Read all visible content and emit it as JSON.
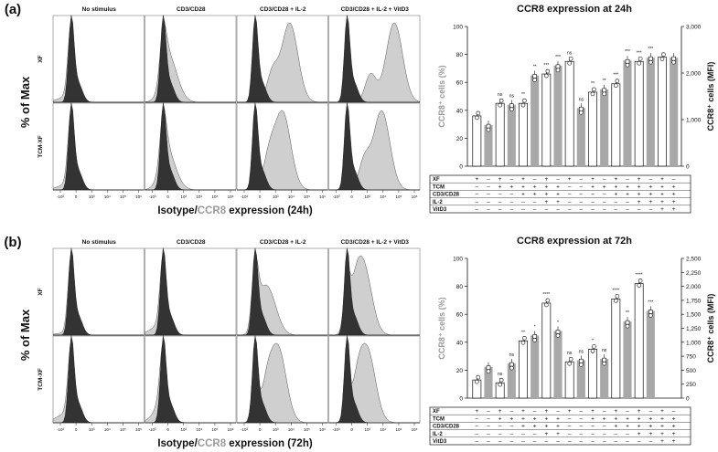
{
  "chart_data": [
    {
      "type": "histogram",
      "panel": "(a)",
      "conditions": [
        "No stimulus",
        "CD3/CD28",
        "CD3/CD28 + IL-2",
        "CD3/CD28 + IL-2 + VitD3"
      ],
      "rows": [
        "XF",
        "TCM-XF"
      ],
      "ylabel": "% of Max",
      "xlabel_parts": [
        "Isotype/",
        "CCR8",
        " expression (24h)"
      ],
      "x_ticks": [
        "-10³",
        "0",
        "10³",
        "10⁴",
        "10⁵",
        "10⁶"
      ],
      "peak_position": [
        [
          0.12,
          0.28,
          0.58,
          0.72
        ],
        [
          0.12,
          0.26,
          0.5,
          0.58
        ]
      ],
      "stained_fraction": [
        [
          0.05,
          0.45,
          0.8,
          0.9
        ],
        [
          0.05,
          0.4,
          0.72,
          0.78
        ]
      ]
    },
    {
      "type": "histogram",
      "panel": "(b)",
      "conditions": [
        "No stimulus",
        "CD3/CD28",
        "CD3/CD28 + IL-2",
        "CD3/CD28 + IL-2 + VitD3"
      ],
      "rows": [
        "XF",
        "TCM-XF"
      ],
      "ylabel": "% of Max",
      "xlabel_parts": [
        "Isotype/",
        "CCR8",
        " expression (72h)"
      ],
      "x_ticks": [
        "-10³",
        "0",
        "10³",
        "10⁴",
        "10⁵",
        "10⁶"
      ],
      "peak_position": [
        [
          0.1,
          0.12,
          0.35,
          0.38
        ],
        [
          0.1,
          0.18,
          0.45,
          0.42
        ]
      ],
      "stained_fraction": [
        [
          0.02,
          0.08,
          0.4,
          0.6
        ],
        [
          0.08,
          0.2,
          0.6,
          0.7
        ]
      ]
    },
    {
      "type": "bar",
      "panel": "(a)",
      "title": "CCR8 expression at 24h",
      "ylabel_left": "CCR8⁺ cells (%)",
      "ylabel_right": "CCR8⁺ cells (MFI)",
      "ylim_left": [
        0,
        100
      ],
      "ylim_right": [
        0,
        3000
      ],
      "yticks_left": [
        "0",
        "20",
        "40",
        "60",
        "80",
        "100"
      ],
      "yticks_right": [
        "0",
        "1,000",
        "2,000",
        "3,000"
      ],
      "groups": 9,
      "series": [
        {
          "name": "CCR8⁺ cells (%)",
          "axis": "left",
          "values": [
            36,
            45,
            45,
            66,
            75,
            53,
            59,
            75,
            78
          ],
          "significance": [
            "",
            "ns",
            "**",
            "***",
            "ns",
            "**",
            "***",
            "***",
            ""
          ]
        },
        {
          "name": "CCR8⁺ cells (MFI)",
          "axis": "right",
          "values": [
            880,
            1320,
            1950,
            2160,
            1250,
            1650,
            2270,
            2330,
            2330
          ],
          "significance": [
            "",
            "ns",
            "**",
            "***",
            "ns",
            "**",
            "***",
            "***",
            ""
          ]
        }
      ],
      "table": {
        "row_labels": [
          "XF",
          "TCM",
          "CD3/CD28",
          "IL-2",
          "VitD3"
        ],
        "cells": [
          [
            "+",
            "–",
            "+",
            "–",
            "+",
            "–",
            "+",
            "–",
            "+",
            "–",
            "+",
            "–",
            "+",
            "–",
            "+",
            "–",
            "+",
            "–"
          ],
          [
            "–",
            "–",
            "+",
            "+",
            "+",
            "+",
            "+",
            "+",
            "–",
            "–",
            "+",
            "+",
            "+",
            "+",
            "+",
            "+",
            "+",
            "+"
          ],
          [
            "–",
            "–",
            "–",
            "–",
            "+",
            "+",
            "+",
            "+",
            "–",
            "–",
            "–",
            "–",
            "+",
            "+",
            "+",
            "+",
            "+",
            "+"
          ],
          [
            "–",
            "–",
            "–",
            "–",
            "–",
            "–",
            "+",
            "+",
            "–",
            "–",
            "–",
            "–",
            "–",
            "–",
            "+",
            "+",
            "+",
            "+"
          ],
          [
            "–",
            "–",
            "–",
            "–",
            "–",
            "–",
            "–",
            "–",
            "–",
            "–",
            "–",
            "–",
            "–",
            "–",
            "–",
            "–",
            "+",
            "+"
          ]
        ]
      }
    },
    {
      "type": "bar",
      "panel": "(b)",
      "title": "CCR8 expression at 72h",
      "ylabel_left": "CCR8⁺ cells (%)",
      "ylabel_right": "CCR8⁺ cells (MFI)",
      "ylim_left": [
        0,
        100
      ],
      "ylim_right": [
        0,
        2500
      ],
      "yticks_left": [
        "0",
        "20",
        "40",
        "60",
        "80",
        "100"
      ],
      "yticks_right": [
        "0",
        "250",
        "500",
        "750",
        "1,000",
        "1,250",
        "1,500",
        "1,750",
        "2,000",
        "2,250",
        "2,500"
      ],
      "groups": 9,
      "series": [
        {
          "name": "CCR8⁺ cells (%)",
          "axis": "left",
          "values": [
            13,
            11,
            41,
            68,
            26,
            35,
            71,
            82,
            0
          ],
          "significance": [
            "",
            "ns",
            "**",
            "****",
            "ns",
            "*",
            "****",
            "****",
            ""
          ]
        },
        {
          "name": "CCR8⁺ cells (MFI)",
          "axis": "right",
          "values": [
            560,
            620,
            1120,
            1200,
            680,
            700,
            1370,
            1560,
            0
          ],
          "significance": [
            "",
            "ns",
            "*",
            "*",
            "ns",
            "ns",
            "**",
            "***",
            ""
          ]
        }
      ],
      "table": {
        "row_labels": [
          "XF",
          "TCM",
          "CD3/CD28",
          "IL-2",
          "VitD3"
        ],
        "cells": [
          [
            "+",
            "–",
            "+",
            "–",
            "+",
            "–",
            "+",
            "–",
            "+",
            "–",
            "+",
            "–",
            "+",
            "–",
            "+",
            "–",
            "+",
            "–"
          ],
          [
            "–",
            "–",
            "+",
            "+",
            "+",
            "+",
            "+",
            "+",
            "–",
            "–",
            "+",
            "+",
            "+",
            "+",
            "+",
            "+",
            "+",
            "+"
          ],
          [
            "–",
            "–",
            "–",
            "–",
            "+",
            "+",
            "+",
            "+",
            "–",
            "–",
            "–",
            "–",
            "+",
            "+",
            "+",
            "+",
            "+",
            "+"
          ],
          [
            "–",
            "–",
            "–",
            "–",
            "–",
            "–",
            "+",
            "+",
            "–",
            "–",
            "–",
            "–",
            "–",
            "–",
            "+",
            "+",
            "+",
            "+"
          ],
          [
            "–",
            "–",
            "–",
            "–",
            "–",
            "–",
            "–",
            "–",
            "–",
            "–",
            "–",
            "–",
            "–",
            "–",
            "–",
            "–",
            "+",
            "+"
          ]
        ]
      }
    }
  ],
  "panel_labels": [
    "(a)",
    "(b)"
  ],
  "colors": {
    "isotype_fill": "#333333",
    "stained_fill": "#cfcfcf",
    "bar_fill": "#ffffff",
    "mfi_bar_fill": "#a8a8a8",
    "text": "#111111",
    "ccr8_gray": "#9a9a9a"
  }
}
